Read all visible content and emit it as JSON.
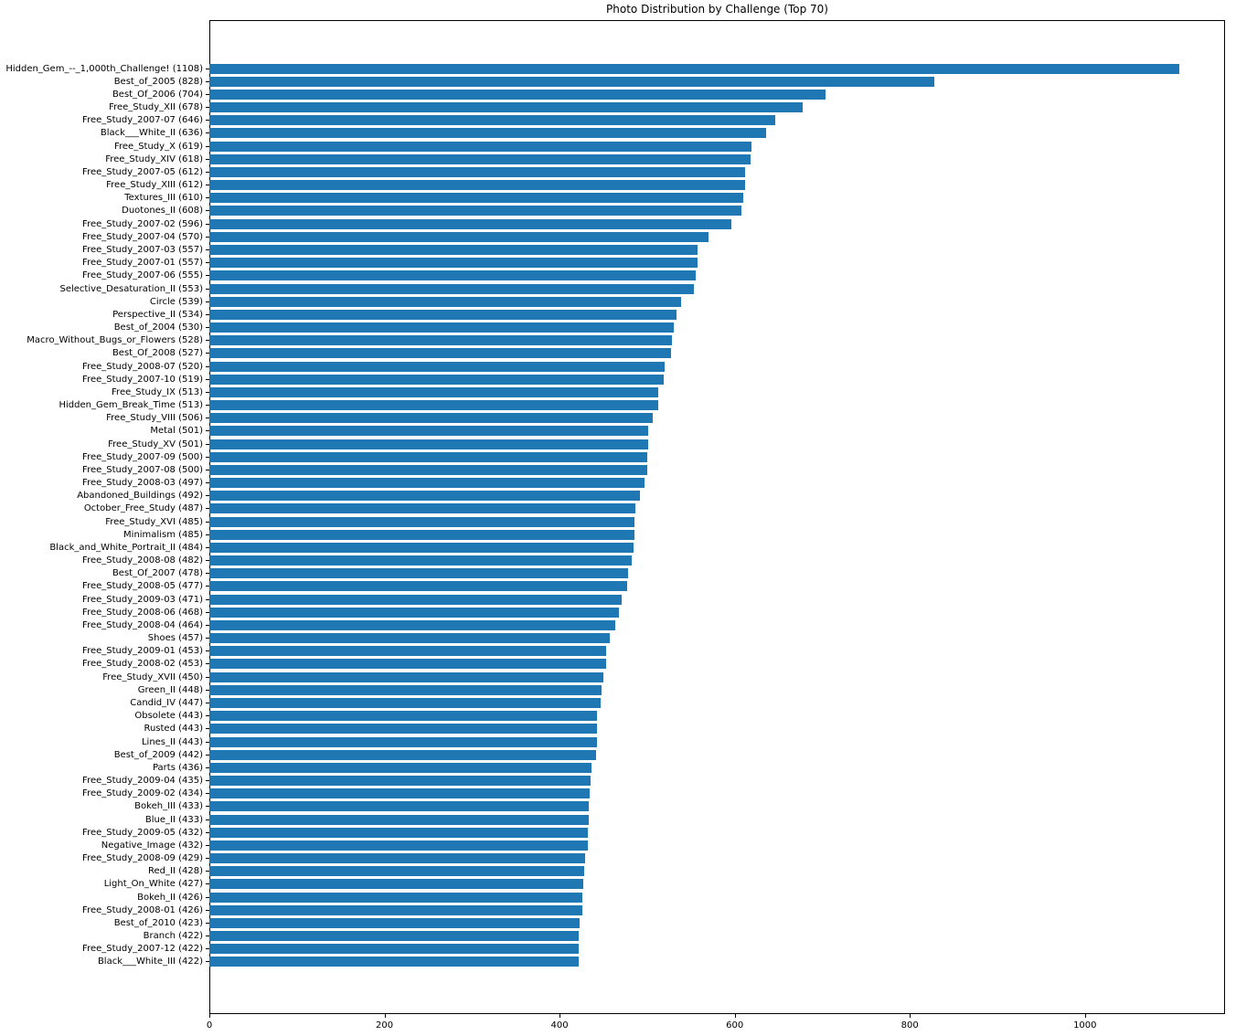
{
  "chart_data": {
    "type": "bar",
    "orientation": "horizontal",
    "title": "Photo Distribution by Challenge (Top 70)",
    "xlabel": "",
    "ylabel": "",
    "bar_color": "#1f77b4",
    "grid": false,
    "legend": null,
    "xlim": [
      0,
      1160
    ],
    "x_ticks": [
      0,
      200,
      400,
      600,
      800,
      1000
    ],
    "categories": [
      "Hidden_Gem_--_1,000th_Challenge! (1108)",
      "Best_of_2005 (828)",
      "Best_Of_2006 (704)",
      "Free_Study_XII (678)",
      "Free_Study_2007-07 (646)",
      "Black___White_II (636)",
      "Free_Study_X (619)",
      "Free_Study_XIV (618)",
      "Free_Study_2007-05 (612)",
      "Free_Study_XIII (612)",
      "Textures_III (610)",
      "Duotones_II (608)",
      "Free_Study_2007-02 (596)",
      "Free_Study_2007-04 (570)",
      "Free_Study_2007-03 (557)",
      "Free_Study_2007-01 (557)",
      "Free_Study_2007-06 (555)",
      "Selective_Desaturation_II (553)",
      "Circle (539)",
      "Perspective_II (534)",
      "Best_of_2004 (530)",
      "Macro_Without_Bugs_or_Flowers (528)",
      "Best_Of_2008 (527)",
      "Free_Study_2008-07 (520)",
      "Free_Study_2007-10 (519)",
      "Free_Study_IX (513)",
      "Hidden_Gem_Break_Time (513)",
      "Free_Study_VIII (506)",
      "Metal (501)",
      "Free_Study_XV (501)",
      "Free_Study_2007-09 (500)",
      "Free_Study_2007-08 (500)",
      "Free_Study_2008-03 (497)",
      "Abandoned_Buildings (492)",
      "October_Free_Study (487)",
      "Free_Study_XVI (485)",
      "Minimalism (485)",
      "Black_and_White_Portrait_II (484)",
      "Free_Study_2008-08 (482)",
      "Best_Of_2007 (478)",
      "Free_Study_2008-05 (477)",
      "Free_Study_2009-03 (471)",
      "Free_Study_2008-06 (468)",
      "Free_Study_2008-04 (464)",
      "Shoes (457)",
      "Free_Study_2009-01 (453)",
      "Free_Study_2008-02 (453)",
      "Free_Study_XVII (450)",
      "Green_II (448)",
      "Candid_IV (447)",
      "Obsolete (443)",
      "Rusted (443)",
      "Lines_II (443)",
      "Best_of_2009 (442)",
      "Parts (436)",
      "Free_Study_2009-04 (435)",
      "Free_Study_2009-02 (434)",
      "Bokeh_III (433)",
      "Blue_II (433)",
      "Free_Study_2009-05 (432)",
      "Negative_Image (432)",
      "Free_Study_2008-09 (429)",
      "Red_II (428)",
      "Light_On_White (427)",
      "Bokeh_II (426)",
      "Free_Study_2008-01 (426)",
      "Best_of_2010 (423)",
      "Branch (422)",
      "Free_Study_2007-12 (422)",
      "Black___White_III (422)"
    ],
    "values": [
      1108,
      828,
      704,
      678,
      646,
      636,
      619,
      618,
      612,
      612,
      610,
      608,
      596,
      570,
      557,
      557,
      555,
      553,
      539,
      534,
      530,
      528,
      527,
      520,
      519,
      513,
      513,
      506,
      501,
      501,
      500,
      500,
      497,
      492,
      487,
      485,
      485,
      484,
      482,
      478,
      477,
      471,
      468,
      464,
      457,
      453,
      453,
      450,
      448,
      447,
      443,
      443,
      443,
      442,
      436,
      435,
      434,
      433,
      433,
      432,
      432,
      429,
      428,
      427,
      426,
      426,
      423,
      422,
      422,
      422
    ]
  }
}
